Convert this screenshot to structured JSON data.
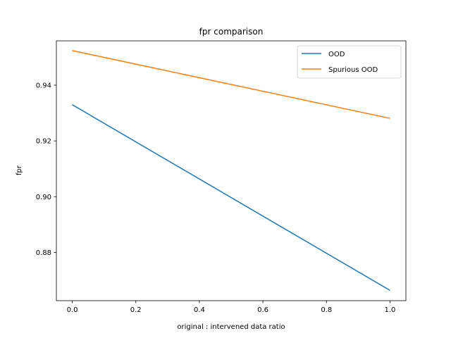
{
  "chart_data": {
    "type": "line",
    "title": "fpr comparison",
    "xlabel": "original : intervened data ratio",
    "ylabel": "fpr",
    "xlim": [
      -0.05,
      1.05
    ],
    "ylim": [
      0.8627,
      0.9559
    ],
    "x_ticks": [
      0.0,
      0.2,
      0.4,
      0.6,
      0.8,
      1.0
    ],
    "x_tick_labels": [
      "0.0",
      "0.2",
      "0.4",
      "0.6",
      "0.8",
      "1.0"
    ],
    "y_ticks": [
      0.88,
      0.9,
      0.92,
      0.94
    ],
    "y_tick_labels": [
      "0.88",
      "0.90",
      "0.92",
      "0.94"
    ],
    "grid": false,
    "legend_position": "upper right",
    "series": [
      {
        "name": "OOD",
        "color": "#1f77b4",
        "x": [
          0.0,
          1.0
        ],
        "y": [
          0.933,
          0.8664
        ]
      },
      {
        "name": "Spurious OOD",
        "color": "#ff7f0e",
        "x": [
          0.0,
          1.0
        ],
        "y": [
          0.9524,
          0.9281
        ]
      }
    ]
  }
}
